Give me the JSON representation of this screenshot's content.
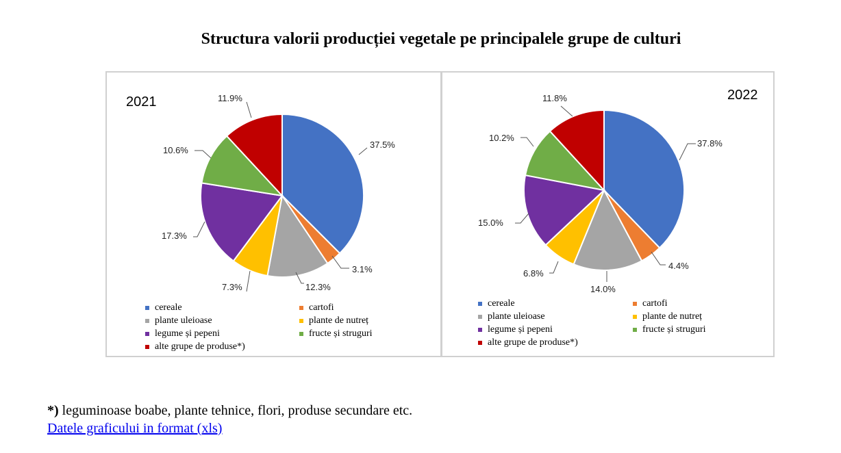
{
  "title": "Structura valorii producției vegetale pe principalele grupe de culturi",
  "colors": [
    "#4472c4",
    "#ed7d31",
    "#a5a5a5",
    "#ffc000",
    "#7030a0",
    "#70ad47",
    "#c00000"
  ],
  "legend_labels": [
    "cereale",
    "cartofi",
    "plante uleioase",
    "plante de nutreț",
    "legume și pepeni",
    "fructe și struguri",
    "alte grupe de produse*)"
  ],
  "chart_data": [
    {
      "type": "pie",
      "title": "2021",
      "labels": [
        "cereale",
        "cartofi",
        "plante uleioase",
        "plante de nutreț",
        "legume și pepeni",
        "fructe și struguri",
        "alte grupe de produse*)"
      ],
      "values": [
        37.5,
        3.1,
        12.3,
        7.3,
        17.3,
        10.6,
        11.9
      ],
      "value_labels": [
        "37.5%",
        "3.1%",
        "12.3%",
        "7.3%",
        "17.3%",
        "10.6%",
        "11.9%"
      ],
      "legend": "bottom"
    },
    {
      "type": "pie",
      "title": "2022",
      "labels": [
        "cereale",
        "cartofi",
        "plante uleioase",
        "plante de nutreț",
        "legume și pepeni",
        "fructe și struguri",
        "alte grupe de produse*)"
      ],
      "values": [
        37.8,
        4.4,
        14.0,
        6.8,
        15.0,
        10.2,
        11.8
      ],
      "value_labels": [
        "37.8%",
        "4.4%",
        "14.0%",
        "6.8%",
        "15.0%",
        "10.2%",
        "11.8%"
      ],
      "legend": "bottom"
    }
  ],
  "footnote": {
    "mark": "*)",
    "text": " leguminoase boabe, plante tehnice, flori, produse secundare etc."
  },
  "link_text": "Datele graficului in format (xls)"
}
